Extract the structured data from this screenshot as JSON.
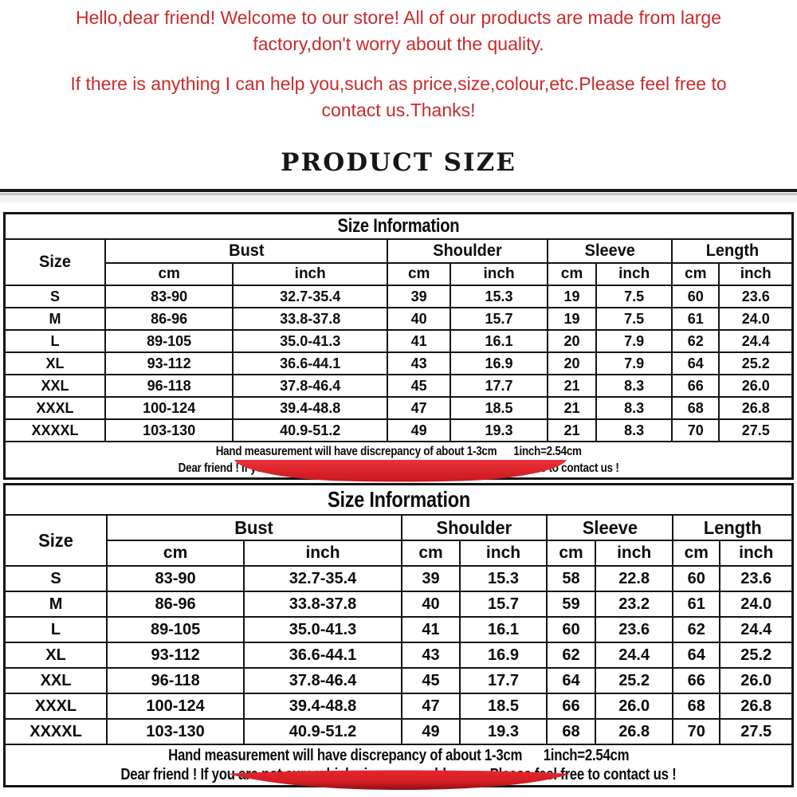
{
  "intro": {
    "para1_line1": "Hello,dear friend! Welcome to our store! All of our products are made from large",
    "para1_line2": "factory,don't worry about the quality.",
    "para2_line1": "If there is anything I can help you,such as price,size,colour,etc.Please feel free to",
    "para2_line2": "contact us.Thanks!"
  },
  "heading": "PRODUCT SIZE",
  "colors": {
    "greeting_red": "#c92a2a",
    "ribbon_red": "#e2232b",
    "ribbon_dark_red": "#8c0d12",
    "table_ink": "#141414"
  },
  "decor": [
    "red-ribbon-mid",
    "red-ribbon-bottom"
  ],
  "tables": [
    {
      "title": "Size Information",
      "corner": "Size",
      "groups": [
        "Bust",
        "Shoulder",
        "Sleeve",
        "Length"
      ],
      "units": [
        "cm",
        "inch",
        "cm",
        "inch",
        "cm",
        "inch",
        "cm",
        "inch"
      ],
      "rows": [
        [
          "S",
          "83-90",
          "32.7-35.4",
          "39",
          "15.3",
          "19",
          "7.5",
          "60",
          "23.6"
        ],
        [
          "M",
          "86-96",
          "33.8-37.8",
          "40",
          "15.7",
          "19",
          "7.5",
          "61",
          "24.0"
        ],
        [
          "L",
          "89-105",
          "35.0-41.3",
          "41",
          "16.1",
          "20",
          "7.9",
          "62",
          "24.4"
        ],
        [
          "XL",
          "93-112",
          "36.6-44.1",
          "43",
          "16.9",
          "20",
          "7.9",
          "64",
          "25.2"
        ],
        [
          "XXL",
          "96-118",
          "37.8-46.4",
          "45",
          "17.7",
          "21",
          "8.3",
          "66",
          "26.0"
        ],
        [
          "XXXL",
          "100-124",
          "39.4-48.8",
          "47",
          "18.5",
          "21",
          "8.3",
          "68",
          "26.8"
        ],
        [
          "XXXXL",
          "103-130",
          "40.9-51.2",
          "49",
          "19.3",
          "21",
          "8.3",
          "70",
          "27.5"
        ]
      ],
      "notes": [
        "Hand measurement will have discrepancy of about 1-3cm      1inch=2.54cm",
        "Dear friend ! If you are not sure which size you could wear . Please feel free to contact us !"
      ]
    },
    {
      "title": "Size Information",
      "corner": "Size",
      "groups": [
        "Bust",
        "Shoulder",
        "Sleeve",
        "Length"
      ],
      "units": [
        "cm",
        "inch",
        "cm",
        "inch",
        "cm",
        "inch",
        "cm",
        "inch"
      ],
      "rows": [
        [
          "S",
          "83-90",
          "32.7-35.4",
          "39",
          "15.3",
          "58",
          "22.8",
          "60",
          "23.6"
        ],
        [
          "M",
          "86-96",
          "33.8-37.8",
          "40",
          "15.7",
          "59",
          "23.2",
          "61",
          "24.0"
        ],
        [
          "L",
          "89-105",
          "35.0-41.3",
          "41",
          "16.1",
          "60",
          "23.6",
          "62",
          "24.4"
        ],
        [
          "XL",
          "93-112",
          "36.6-44.1",
          "43",
          "16.9",
          "62",
          "24.4",
          "64",
          "25.2"
        ],
        [
          "XXL",
          "96-118",
          "37.8-46.4",
          "45",
          "17.7",
          "64",
          "25.2",
          "66",
          "26.0"
        ],
        [
          "XXXL",
          "100-124",
          "39.4-48.8",
          "47",
          "18.5",
          "66",
          "26.0",
          "68",
          "26.8"
        ],
        [
          "XXXXL",
          "103-130",
          "40.9-51.2",
          "49",
          "19.3",
          "68",
          "26.8",
          "70",
          "27.5"
        ]
      ],
      "notes": [
        "Hand measurement will have discrepancy of about 1-3cm      1inch=2.54cm",
        "Dear friend ! If you are not sure which size you could wear . Please feel free to contact us !"
      ]
    }
  ]
}
